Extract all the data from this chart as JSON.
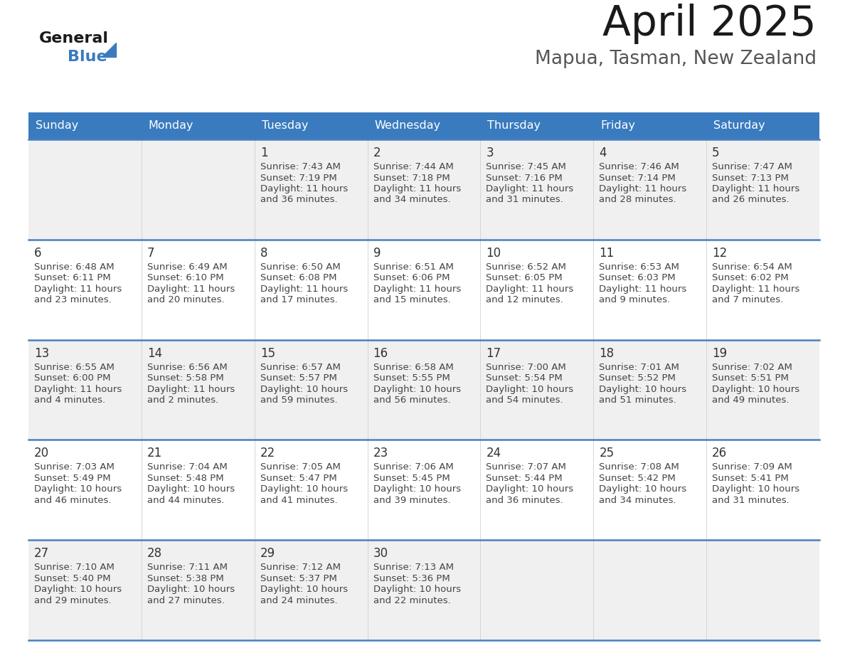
{
  "title": "April 2025",
  "subtitle": "Mapua, Tasman, New Zealand",
  "header_bg": "#3a7bbf",
  "header_text": "#ffffff",
  "row_bg": "#ffffff",
  "row_bg_alt": "#f0f0f0",
  "separator_color": "#4a7fc0",
  "day_headers": [
    "Sunday",
    "Monday",
    "Tuesday",
    "Wednesday",
    "Thursday",
    "Friday",
    "Saturday"
  ],
  "cell_text_color": "#444444",
  "day_number_color": "#333333",
  "calendar_data": [
    [
      null,
      null,
      {
        "day": "1",
        "sunrise": "7:43 AM",
        "sunset": "7:19 PM",
        "daylight_h": "11 hours",
        "daylight_m": "and 36 minutes."
      },
      {
        "day": "2",
        "sunrise": "7:44 AM",
        "sunset": "7:18 PM",
        "daylight_h": "11 hours",
        "daylight_m": "and 34 minutes."
      },
      {
        "day": "3",
        "sunrise": "7:45 AM",
        "sunset": "7:16 PM",
        "daylight_h": "11 hours",
        "daylight_m": "and 31 minutes."
      },
      {
        "day": "4",
        "sunrise": "7:46 AM",
        "sunset": "7:14 PM",
        "daylight_h": "11 hours",
        "daylight_m": "and 28 minutes."
      },
      {
        "day": "5",
        "sunrise": "7:47 AM",
        "sunset": "7:13 PM",
        "daylight_h": "11 hours",
        "daylight_m": "and 26 minutes."
      }
    ],
    [
      {
        "day": "6",
        "sunrise": "6:48 AM",
        "sunset": "6:11 PM",
        "daylight_h": "11 hours",
        "daylight_m": "and 23 minutes."
      },
      {
        "day": "7",
        "sunrise": "6:49 AM",
        "sunset": "6:10 PM",
        "daylight_h": "11 hours",
        "daylight_m": "and 20 minutes."
      },
      {
        "day": "8",
        "sunrise": "6:50 AM",
        "sunset": "6:08 PM",
        "daylight_h": "11 hours",
        "daylight_m": "and 17 minutes."
      },
      {
        "day": "9",
        "sunrise": "6:51 AM",
        "sunset": "6:06 PM",
        "daylight_h": "11 hours",
        "daylight_m": "and 15 minutes."
      },
      {
        "day": "10",
        "sunrise": "6:52 AM",
        "sunset": "6:05 PM",
        "daylight_h": "11 hours",
        "daylight_m": "and 12 minutes."
      },
      {
        "day": "11",
        "sunrise": "6:53 AM",
        "sunset": "6:03 PM",
        "daylight_h": "11 hours",
        "daylight_m": "and 9 minutes."
      },
      {
        "day": "12",
        "sunrise": "6:54 AM",
        "sunset": "6:02 PM",
        "daylight_h": "11 hours",
        "daylight_m": "and 7 minutes."
      }
    ],
    [
      {
        "day": "13",
        "sunrise": "6:55 AM",
        "sunset": "6:00 PM",
        "daylight_h": "11 hours",
        "daylight_m": "and 4 minutes."
      },
      {
        "day": "14",
        "sunrise": "6:56 AM",
        "sunset": "5:58 PM",
        "daylight_h": "11 hours",
        "daylight_m": "and 2 minutes."
      },
      {
        "day": "15",
        "sunrise": "6:57 AM",
        "sunset": "5:57 PM",
        "daylight_h": "10 hours",
        "daylight_m": "and 59 minutes."
      },
      {
        "day": "16",
        "sunrise": "6:58 AM",
        "sunset": "5:55 PM",
        "daylight_h": "10 hours",
        "daylight_m": "and 56 minutes."
      },
      {
        "day": "17",
        "sunrise": "7:00 AM",
        "sunset": "5:54 PM",
        "daylight_h": "10 hours",
        "daylight_m": "and 54 minutes."
      },
      {
        "day": "18",
        "sunrise": "7:01 AM",
        "sunset": "5:52 PM",
        "daylight_h": "10 hours",
        "daylight_m": "and 51 minutes."
      },
      {
        "day": "19",
        "sunrise": "7:02 AM",
        "sunset": "5:51 PM",
        "daylight_h": "10 hours",
        "daylight_m": "and 49 minutes."
      }
    ],
    [
      {
        "day": "20",
        "sunrise": "7:03 AM",
        "sunset": "5:49 PM",
        "daylight_h": "10 hours",
        "daylight_m": "and 46 minutes."
      },
      {
        "day": "21",
        "sunrise": "7:04 AM",
        "sunset": "5:48 PM",
        "daylight_h": "10 hours",
        "daylight_m": "and 44 minutes."
      },
      {
        "day": "22",
        "sunrise": "7:05 AM",
        "sunset": "5:47 PM",
        "daylight_h": "10 hours",
        "daylight_m": "and 41 minutes."
      },
      {
        "day": "23",
        "sunrise": "7:06 AM",
        "sunset": "5:45 PM",
        "daylight_h": "10 hours",
        "daylight_m": "and 39 minutes."
      },
      {
        "day": "24",
        "sunrise": "7:07 AM",
        "sunset": "5:44 PM",
        "daylight_h": "10 hours",
        "daylight_m": "and 36 minutes."
      },
      {
        "day": "25",
        "sunrise": "7:08 AM",
        "sunset": "5:42 PM",
        "daylight_h": "10 hours",
        "daylight_m": "and 34 minutes."
      },
      {
        "day": "26",
        "sunrise": "7:09 AM",
        "sunset": "5:41 PM",
        "daylight_h": "10 hours",
        "daylight_m": "and 31 minutes."
      }
    ],
    [
      {
        "day": "27",
        "sunrise": "7:10 AM",
        "sunset": "5:40 PM",
        "daylight_h": "10 hours",
        "daylight_m": "and 29 minutes."
      },
      {
        "day": "28",
        "sunrise": "7:11 AM",
        "sunset": "5:38 PM",
        "daylight_h": "10 hours",
        "daylight_m": "and 27 minutes."
      },
      {
        "day": "29",
        "sunrise": "7:12 AM",
        "sunset": "5:37 PM",
        "daylight_h": "10 hours",
        "daylight_m": "and 24 minutes."
      },
      {
        "day": "30",
        "sunrise": "7:13 AM",
        "sunset": "5:36 PM",
        "daylight_h": "10 hours",
        "daylight_m": "and 22 minutes."
      },
      null,
      null,
      null
    ]
  ]
}
